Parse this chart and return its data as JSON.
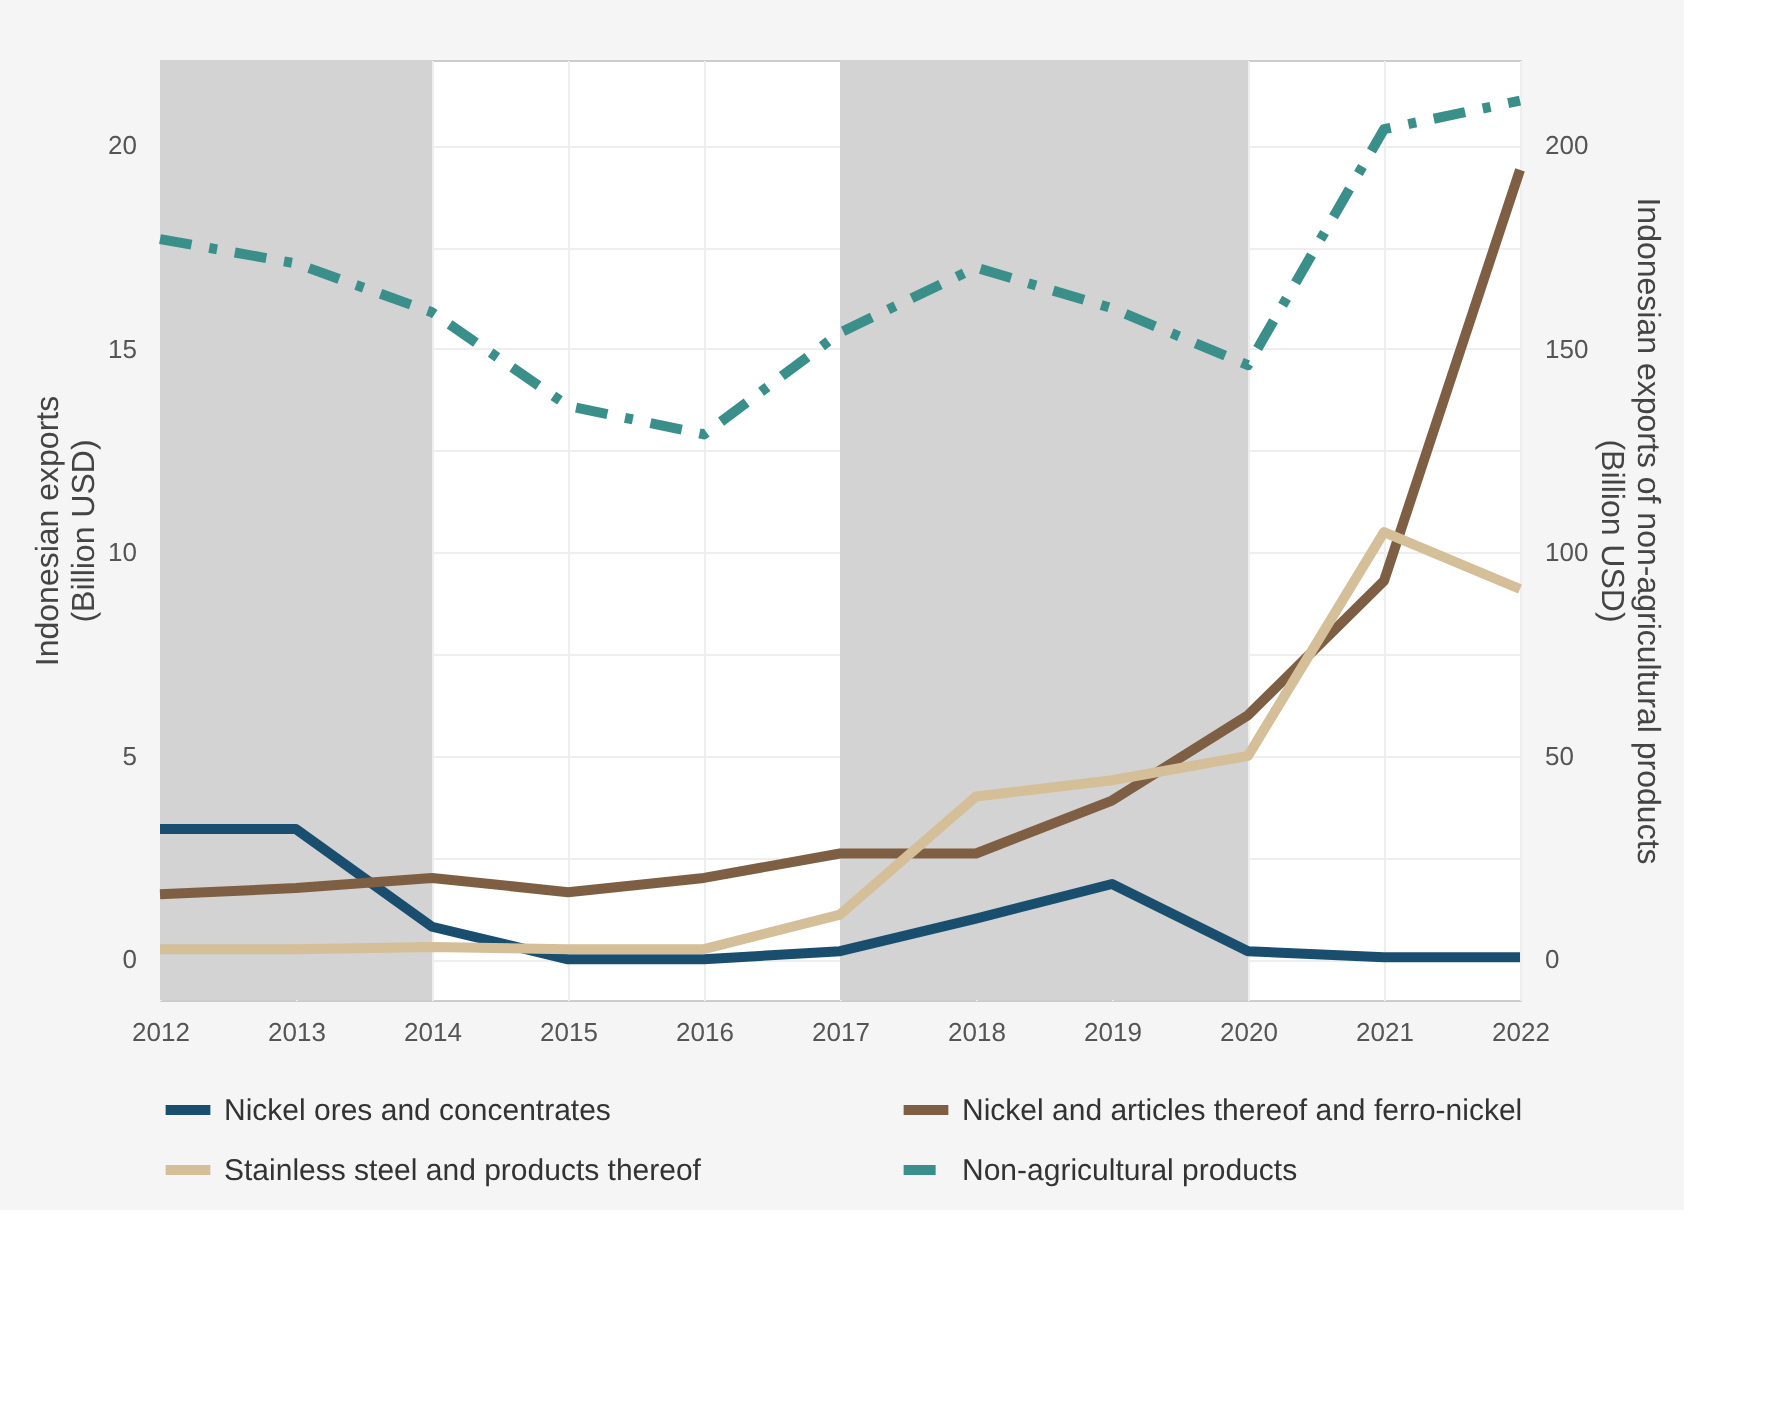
{
  "chart_data": {
    "type": "line",
    "ylabel": "Indonesian exports\n(Billion USD)",
    "y2label": "Indonesian exports of non-agricultural products\n(Billion USD)",
    "x": [
      2012,
      2013,
      2014,
      2015,
      2016,
      2017,
      2018,
      2019,
      2020,
      2021,
      2022
    ],
    "xlim": [
      2012,
      2022
    ],
    "xticks": [
      2012,
      2013,
      2014,
      2015,
      2016,
      2017,
      2018,
      2019,
      2020,
      2021,
      2022
    ],
    "ylim": [
      -1,
      22.1
    ],
    "yticks": [
      0,
      {
        "value": 2.5,
        "label": null
      },
      5,
      {
        "value": 7.5,
        "label": null
      },
      10,
      {
        "value": 12.5,
        "label": null
      },
      15,
      {
        "value": 17.5,
        "label": null
      },
      20
    ],
    "y2lim": [
      -10,
      221
    ],
    "y2ticks": [
      0,
      50,
      100,
      150,
      200
    ],
    "series": [
      {
        "name": "Nickel ores and concentrates",
        "color": "#1a4e6e",
        "line_style": "solid",
        "values": [
          3.2,
          3.2,
          0.8,
          0,
          0,
          0.2,
          1.0,
          1.85,
          0.2,
          0.05,
          0.05
        ]
      },
      {
        "name": "Nickel and articles thereof and ferro-nickel",
        "color": "#7f5f44",
        "line_style": "solid",
        "values": [
          1.6,
          1.75,
          2.0,
          1.65,
          2.0,
          2.6,
          2.6,
          3.9,
          6.0,
          9.3,
          19.4
        ]
      },
      {
        "name": "Stainless steel and products thereof",
        "color": "#d4bf98",
        "line_style": "solid",
        "values": [
          0.25,
          0.25,
          0.3,
          0.25,
          0.25,
          1.1,
          4.0,
          4.4,
          5.0,
          10.5,
          9.1
        ]
      },
      {
        "name": "Non-agricultural products",
        "color": "#3a8f8a",
        "line_style": "dashed",
        "axis": "y2",
        "values": [
          177,
          171,
          159,
          136,
          129,
          154,
          170,
          160,
          146,
          204,
          211
        ]
      }
    ],
    "bands": [
      {
        "axis": "x",
        "from": 2012,
        "to": 2014,
        "color": "#d3d3d3"
      },
      {
        "axis": "x",
        "from": 2017,
        "to": 2020,
        "color": "#d3d3d3"
      }
    ],
    "grid": true,
    "legend": "bottom"
  }
}
